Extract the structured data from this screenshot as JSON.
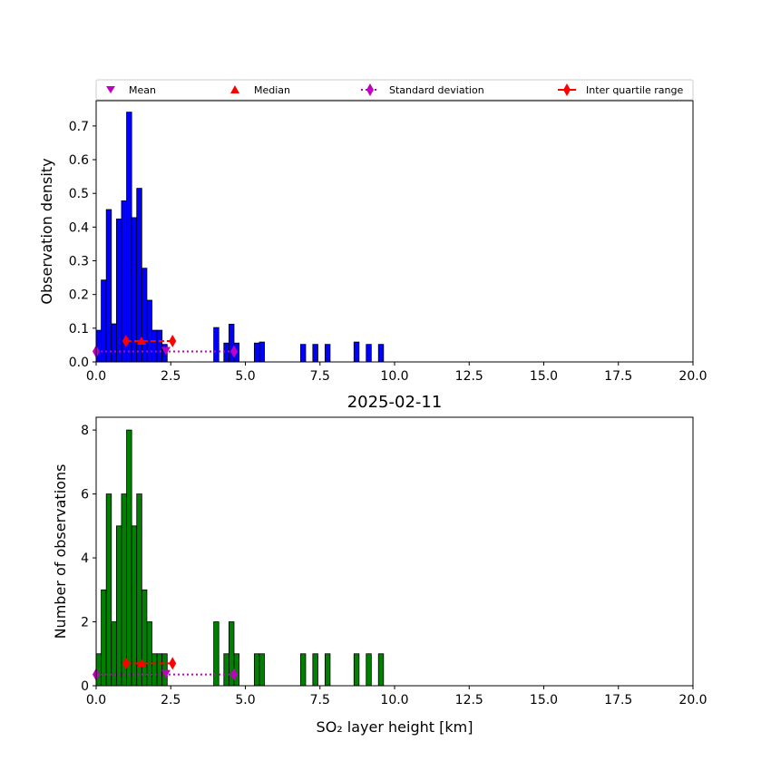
{
  "chart_data": [
    {
      "type": "bar",
      "panel": "density-histogram",
      "ylabel": "Observation density",
      "xlim": [
        0,
        20
      ],
      "ylim": [
        0,
        0.775
      ],
      "xticks": [
        "0.0",
        "2.5",
        "5.0",
        "7.5",
        "10.0",
        "12.5",
        "15.0",
        "17.5",
        "20.0"
      ],
      "yticks": [
        "0.0",
        "0.1",
        "0.2",
        "0.3",
        "0.4",
        "0.5",
        "0.6",
        "0.7"
      ],
      "bar_color": "#0000ff",
      "bin_width": 0.17,
      "bins": [
        {
          "x": 0.0,
          "y": 0.094
        },
        {
          "x": 0.17,
          "y": 0.243
        },
        {
          "x": 0.34,
          "y": 0.452
        },
        {
          "x": 0.51,
          "y": 0.113
        },
        {
          "x": 0.68,
          "y": 0.424
        },
        {
          "x": 0.85,
          "y": 0.478
        },
        {
          "x": 1.02,
          "y": 0.741
        },
        {
          "x": 1.19,
          "y": 0.428
        },
        {
          "x": 1.36,
          "y": 0.515
        },
        {
          "x": 1.53,
          "y": 0.278
        },
        {
          "x": 1.7,
          "y": 0.183
        },
        {
          "x": 1.87,
          "y": 0.094
        },
        {
          "x": 2.04,
          "y": 0.094
        },
        {
          "x": 2.21,
          "y": 0.052
        },
        {
          "x": 3.94,
          "y": 0.102
        },
        {
          "x": 4.28,
          "y": 0.056
        },
        {
          "x": 4.45,
          "y": 0.112
        },
        {
          "x": 4.62,
          "y": 0.056
        },
        {
          "x": 5.3,
          "y": 0.056
        },
        {
          "x": 5.47,
          "y": 0.059
        },
        {
          "x": 6.85,
          "y": 0.052
        },
        {
          "x": 7.26,
          "y": 0.052
        },
        {
          "x": 7.67,
          "y": 0.052
        },
        {
          "x": 8.64,
          "y": 0.059
        },
        {
          "x": 9.05,
          "y": 0.052
        },
        {
          "x": 9.46,
          "y": 0.052
        }
      ],
      "stats": {
        "mean": {
          "x": 2.34,
          "y": 0.031
        },
        "median": {
          "x": 1.52,
          "y": 0.062
        },
        "std": {
          "x": [
            0.0,
            4.62
          ],
          "y": 0.031
        },
        "iqr": {
          "x": [
            1.0,
            2.56
          ],
          "y": 0.062
        }
      }
    },
    {
      "type": "bar",
      "panel": "count-histogram",
      "title": "2025-02-11",
      "xlabel": "SO₂ layer height [km]",
      "ylabel": "Number of observations",
      "xlim": [
        0,
        20
      ],
      "ylim": [
        0,
        8.4
      ],
      "xticks": [
        "0.0",
        "2.5",
        "5.0",
        "7.5",
        "10.0",
        "12.5",
        "15.0",
        "17.5",
        "20.0"
      ],
      "yticks": [
        "0",
        "2",
        "4",
        "6",
        "8"
      ],
      "bar_color": "#008000",
      "bin_width": 0.17,
      "bins": [
        {
          "x": 0.0,
          "y": 1
        },
        {
          "x": 0.17,
          "y": 3
        },
        {
          "x": 0.34,
          "y": 6
        },
        {
          "x": 0.51,
          "y": 2
        },
        {
          "x": 0.68,
          "y": 5
        },
        {
          "x": 0.85,
          "y": 6
        },
        {
          "x": 1.02,
          "y": 8
        },
        {
          "x": 1.19,
          "y": 5
        },
        {
          "x": 1.36,
          "y": 6
        },
        {
          "x": 1.53,
          "y": 3
        },
        {
          "x": 1.7,
          "y": 2
        },
        {
          "x": 1.87,
          "y": 1
        },
        {
          "x": 2.04,
          "y": 1
        },
        {
          "x": 2.21,
          "y": 1
        },
        {
          "x": 3.94,
          "y": 2
        },
        {
          "x": 4.28,
          "y": 1
        },
        {
          "x": 4.45,
          "y": 2
        },
        {
          "x": 4.62,
          "y": 1
        },
        {
          "x": 5.3,
          "y": 1
        },
        {
          "x": 5.47,
          "y": 1
        },
        {
          "x": 6.85,
          "y": 1
        },
        {
          "x": 7.26,
          "y": 1
        },
        {
          "x": 7.67,
          "y": 1
        },
        {
          "x": 8.64,
          "y": 1
        },
        {
          "x": 9.05,
          "y": 1
        },
        {
          "x": 9.46,
          "y": 1
        }
      ],
      "stats": {
        "mean": {
          "x": 2.34,
          "y": 0.35
        },
        "median": {
          "x": 1.52,
          "y": 0.7
        },
        "std": {
          "x": [
            0.0,
            4.62
          ],
          "y": 0.35
        },
        "iqr": {
          "x": [
            1.0,
            2.56
          ],
          "y": 0.7
        }
      }
    }
  ],
  "legend": {
    "placement": "top, above upper panel",
    "entries": [
      {
        "label": "Mean",
        "marker": "triangle-down",
        "color": "#bf00bf"
      },
      {
        "label": "Median",
        "marker": "triangle-up",
        "color": "#ff0000"
      },
      {
        "label": "Standard deviation",
        "marker": "diamond",
        "line": "dotted",
        "color": "#bf00bf"
      },
      {
        "label": "Inter quartile range",
        "marker": "diamond",
        "line": "solid",
        "color": "#ff0000"
      }
    ]
  }
}
